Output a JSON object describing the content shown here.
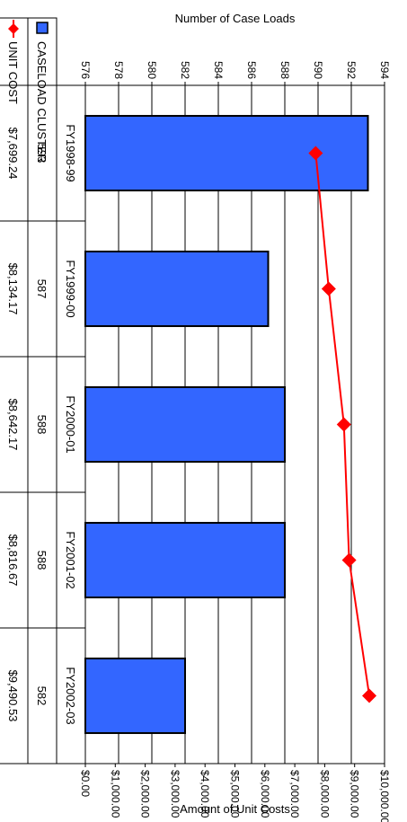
{
  "chart_data": {
    "type": "bar",
    "orientation": "rotated 90 degrees clockwise",
    "categories": [
      "FY1998-99",
      "FY1999-00",
      "FY2000-01",
      "FY2001-02",
      "FY2002-03"
    ],
    "series": [
      {
        "name": "CASELOAD CLUSTER",
        "type": "bar",
        "axis": "primary",
        "values": [
          593,
          587,
          588,
          588,
          582
        ],
        "value_labels": [
          "593",
          "587",
          "588",
          "588",
          "582"
        ],
        "color": "#3366ff"
      },
      {
        "name": "UNIT COST",
        "type": "line",
        "axis": "secondary",
        "marker": "diamond",
        "values": [
          7699.24,
          8134.17,
          8642.17,
          8816.67,
          9490.53
        ],
        "value_labels": [
          "$7,699.24",
          "$8,134.17",
          "$8,642.17",
          "$8,816.67",
          "$9,490.53"
        ],
        "color": "#ff0000"
      }
    ],
    "y_primary": {
      "label": "Number of Case Loads",
      "range": [
        576,
        594
      ],
      "ticks": [
        "576",
        "578",
        "580",
        "582",
        "584",
        "586",
        "588",
        "590",
        "592",
        "594"
      ]
    },
    "y_secondary": {
      "label": "Amount of Unit Costs",
      "range": [
        0,
        10000
      ],
      "ticks": [
        "$0.00",
        "$1,000.00",
        "$2,000.00",
        "$3,000.00",
        "$4,000.00",
        "$5,000.00",
        "$6,000.00",
        "$7,000.00",
        "$8,000.00",
        "$9,000.00",
        "$10,000.00"
      ]
    },
    "grid": true,
    "legend": "data table",
    "data_table": true
  }
}
